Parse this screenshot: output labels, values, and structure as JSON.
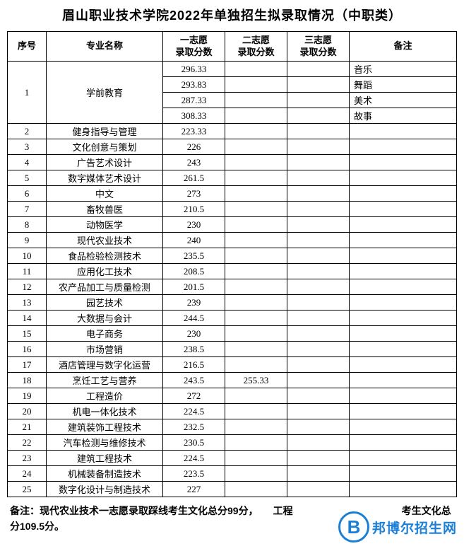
{
  "title": "眉山职业技术学院2022年单独招生拟录取情况（中职类）",
  "headers": {
    "seq": "序号",
    "name": "专业名称",
    "s1": "一志愿\n录取分数",
    "s2": "二志愿\n录取分数",
    "s3": "三志愿\n录取分数",
    "note": "备注"
  },
  "rows": [
    {
      "seq": "1",
      "name": "学前教育",
      "s1": "296.33",
      "s2": "",
      "s3": "",
      "note": "音乐",
      "rowspan": 4
    },
    {
      "seq": "",
      "name": "",
      "s1": "293.83",
      "s2": "",
      "s3": "",
      "note": "舞蹈",
      "merged": true
    },
    {
      "seq": "",
      "name": "",
      "s1": "287.33",
      "s2": "",
      "s3": "",
      "note": "美术",
      "merged": true
    },
    {
      "seq": "",
      "name": "",
      "s1": "308.33",
      "s2": "",
      "s3": "",
      "note": "故事",
      "merged": true
    },
    {
      "seq": "2",
      "name": "健身指导与管理",
      "s1": "223.33",
      "s2": "",
      "s3": "",
      "note": ""
    },
    {
      "seq": "3",
      "name": "文化创意与策划",
      "s1": "226",
      "s2": "",
      "s3": "",
      "note": ""
    },
    {
      "seq": "4",
      "name": "广告艺术设计",
      "s1": "243",
      "s2": "",
      "s3": "",
      "note": ""
    },
    {
      "seq": "5",
      "name": "数字媒体艺术设计",
      "s1": "261.5",
      "s2": "",
      "s3": "",
      "note": ""
    },
    {
      "seq": "6",
      "name": "中文",
      "s1": "273",
      "s2": "",
      "s3": "",
      "note": ""
    },
    {
      "seq": "7",
      "name": "畜牧兽医",
      "s1": "210.5",
      "s2": "",
      "s3": "",
      "note": ""
    },
    {
      "seq": "8",
      "name": "动物医学",
      "s1": "230",
      "s2": "",
      "s3": "",
      "note": ""
    },
    {
      "seq": "9",
      "name": "现代农业技术",
      "s1": "240",
      "s2": "",
      "s3": "",
      "note": ""
    },
    {
      "seq": "10",
      "name": "食品检验检测技术",
      "s1": "235.5",
      "s2": "",
      "s3": "",
      "note": ""
    },
    {
      "seq": "11",
      "name": "应用化工技术",
      "s1": "208.5",
      "s2": "",
      "s3": "",
      "note": ""
    },
    {
      "seq": "12",
      "name": "农产品加工与质量检测",
      "s1": "201.5",
      "s2": "",
      "s3": "",
      "note": ""
    },
    {
      "seq": "13",
      "name": "园艺技术",
      "s1": "239",
      "s2": "",
      "s3": "",
      "note": ""
    },
    {
      "seq": "14",
      "name": "大数据与会计",
      "s1": "244.5",
      "s2": "",
      "s3": "",
      "note": ""
    },
    {
      "seq": "15",
      "name": "电子商务",
      "s1": "230",
      "s2": "",
      "s3": "",
      "note": ""
    },
    {
      "seq": "16",
      "name": "市场营销",
      "s1": "238.5",
      "s2": "",
      "s3": "",
      "note": ""
    },
    {
      "seq": "17",
      "name": "酒店管理与数字化运营",
      "s1": "216.5",
      "s2": "",
      "s3": "",
      "note": ""
    },
    {
      "seq": "18",
      "name": "烹饪工艺与营养",
      "s1": "243.5",
      "s2": "255.33",
      "s3": "",
      "note": ""
    },
    {
      "seq": "19",
      "name": "工程造价",
      "s1": "272",
      "s2": "",
      "s3": "",
      "note": ""
    },
    {
      "seq": "20",
      "name": "机电一体化技术",
      "s1": "224.5",
      "s2": "",
      "s3": "",
      "note": ""
    },
    {
      "seq": "21",
      "name": "建筑装饰工程技术",
      "s1": "232.5",
      "s2": "",
      "s3": "",
      "note": ""
    },
    {
      "seq": "22",
      "name": "汽车检测与维修技术",
      "s1": "230.5",
      "s2": "",
      "s3": "",
      "note": ""
    },
    {
      "seq": "23",
      "name": "建筑工程技术",
      "s1": "224.5",
      "s2": "",
      "s3": "",
      "note": ""
    },
    {
      "seq": "24",
      "name": "机械装备制造技术",
      "s1": "223.5",
      "s2": "",
      "s3": "",
      "note": ""
    },
    {
      "seq": "25",
      "name": "数字化设计与制造技术",
      "s1": "227",
      "s2": "",
      "s3": "",
      "note": ""
    }
  ],
  "footer": "备注：现代农业技术一志愿录取踩线考生文化总分99分，　　工程　　　　　　　　　　　考生文化总分109.5分。",
  "watermark": {
    "logo_letter": "B",
    "text": "邦博尔招生网",
    "color": "#1b7fd6"
  }
}
